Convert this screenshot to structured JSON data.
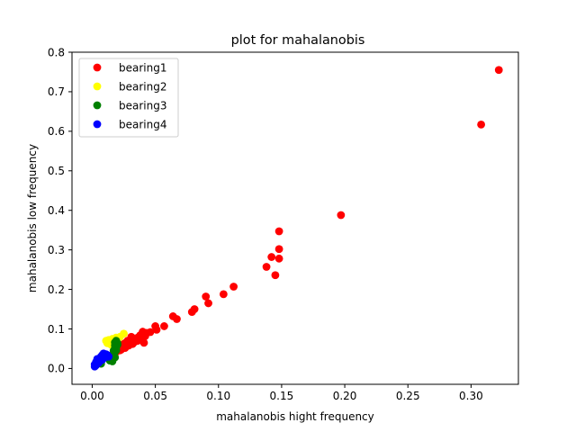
{
  "chart_data": {
    "type": "scatter",
    "title": "plot for mahalanobis",
    "xlabel": "mahalanobis hight frequency",
    "ylabel": "mahalanobis low frequency",
    "xlim": [
      -0.016,
      0.3375
    ],
    "ylim": [
      -0.04,
      0.8
    ],
    "xticks": [
      0.0,
      0.05,
      0.1,
      0.15,
      0.2,
      0.25,
      0.3
    ],
    "xtick_labels": [
      "0.00",
      "0.05",
      "0.10",
      "0.15",
      "0.20",
      "0.25",
      "0.30"
    ],
    "yticks": [
      0.0,
      0.1,
      0.2,
      0.3,
      0.4,
      0.5,
      0.6,
      0.7,
      0.8
    ],
    "ytick_labels": [
      "0.0",
      "0.1",
      "0.2",
      "0.3",
      "0.4",
      "0.5",
      "0.6",
      "0.7",
      "0.8"
    ],
    "grid": false,
    "legend_position": "top-left",
    "series": [
      {
        "name": "bearing1",
        "color": "#ff0000",
        "points": [
          [
            0.322,
            0.755
          ],
          [
            0.308,
            0.617
          ],
          [
            0.197,
            0.388
          ],
          [
            0.148,
            0.347
          ],
          [
            0.148,
            0.302
          ],
          [
            0.148,
            0.278
          ],
          [
            0.142,
            0.282
          ],
          [
            0.138,
            0.257
          ],
          [
            0.145,
            0.236
          ],
          [
            0.112,
            0.207
          ],
          [
            0.104,
            0.188
          ],
          [
            0.09,
            0.182
          ],
          [
            0.092,
            0.165
          ],
          [
            0.081,
            0.15
          ],
          [
            0.079,
            0.143
          ],
          [
            0.067,
            0.125
          ],
          [
            0.064,
            0.132
          ],
          [
            0.057,
            0.107
          ],
          [
            0.05,
            0.107
          ],
          [
            0.051,
            0.098
          ],
          [
            0.046,
            0.092
          ],
          [
            0.043,
            0.09
          ],
          [
            0.04,
            0.093
          ],
          [
            0.038,
            0.084
          ],
          [
            0.041,
            0.065
          ],
          [
            0.036,
            0.078
          ],
          [
            0.033,
            0.074
          ],
          [
            0.031,
            0.08
          ],
          [
            0.034,
            0.068
          ],
          [
            0.03,
            0.066
          ],
          [
            0.029,
            0.058
          ],
          [
            0.027,
            0.06
          ],
          [
            0.026,
            0.052
          ],
          [
            0.024,
            0.055
          ],
          [
            0.023,
            0.048
          ],
          [
            0.021,
            0.05
          ],
          [
            0.02,
            0.045
          ],
          [
            0.019,
            0.042
          ],
          [
            0.022,
            0.046
          ],
          [
            0.018,
            0.04
          ],
          [
            0.025,
            0.062
          ],
          [
            0.028,
            0.07
          ],
          [
            0.032,
            0.062
          ],
          [
            0.036,
            0.07
          ],
          [
            0.038,
            0.076
          ],
          [
            0.042,
            0.082
          ],
          [
            0.03,
            0.071
          ],
          [
            0.026,
            0.064
          ]
        ]
      },
      {
        "name": "bearing2",
        "color": "#ffff00",
        "points": [
          [
            0.025,
            0.088
          ],
          [
            0.022,
            0.08
          ],
          [
            0.019,
            0.078
          ],
          [
            0.016,
            0.075
          ],
          [
            0.013,
            0.072
          ],
          [
            0.011,
            0.07
          ],
          [
            0.014,
            0.065
          ],
          [
            0.017,
            0.07
          ],
          [
            0.02,
            0.074
          ],
          [
            0.012,
            0.064
          ],
          [
            0.015,
            0.06
          ],
          [
            0.018,
            0.066
          ]
        ]
      },
      {
        "name": "bearing3",
        "color": "#008000",
        "points": [
          [
            0.019,
            0.07
          ],
          [
            0.018,
            0.066
          ],
          [
            0.019,
            0.062
          ],
          [
            0.018,
            0.058
          ],
          [
            0.019,
            0.054
          ],
          [
            0.018,
            0.05
          ],
          [
            0.019,
            0.046
          ],
          [
            0.018,
            0.042
          ],
          [
            0.017,
            0.038
          ],
          [
            0.016,
            0.034
          ],
          [
            0.017,
            0.03
          ],
          [
            0.016,
            0.026
          ],
          [
            0.018,
            0.028
          ],
          [
            0.015,
            0.022
          ],
          [
            0.016,
            0.018
          ],
          [
            0.014,
            0.02
          ],
          [
            0.007,
            0.012
          ],
          [
            0.02,
            0.06
          ],
          [
            0.02,
            0.064
          ],
          [
            0.017,
            0.045
          ]
        ]
      },
      {
        "name": "bearing4",
        "color": "#0000ff",
        "points": [
          [
            0.002,
            0.005
          ],
          [
            0.003,
            0.008
          ],
          [
            0.004,
            0.012
          ],
          [
            0.003,
            0.016
          ],
          [
            0.005,
            0.02
          ],
          [
            0.004,
            0.024
          ],
          [
            0.006,
            0.026
          ],
          [
            0.007,
            0.03
          ],
          [
            0.008,
            0.034
          ],
          [
            0.009,
            0.036
          ],
          [
            0.01,
            0.032
          ],
          [
            0.011,
            0.036
          ],
          [
            0.012,
            0.034
          ],
          [
            0.013,
            0.03
          ],
          [
            0.01,
            0.028
          ],
          [
            0.006,
            0.018
          ],
          [
            0.008,
            0.022
          ],
          [
            0.002,
            0.01
          ],
          [
            0.005,
            0.014
          ],
          [
            0.009,
            0.038
          ]
        ]
      }
    ]
  }
}
